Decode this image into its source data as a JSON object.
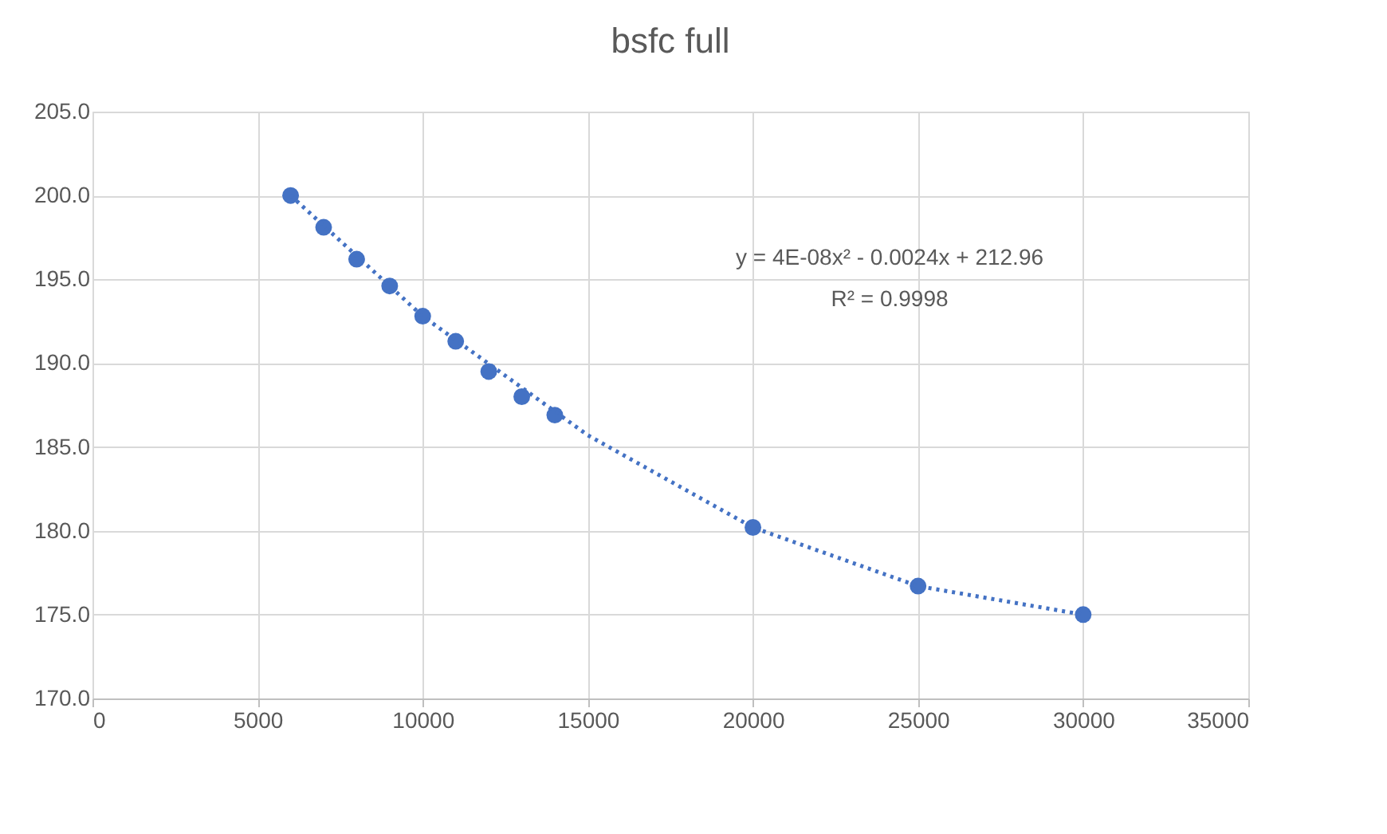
{
  "chart_data": {
    "type": "scatter",
    "title": "bsfc full",
    "x": [
      6000,
      7000,
      8000,
      9000,
      10000,
      11000,
      12000,
      13000,
      14000,
      20000,
      25000,
      30000
    ],
    "series": [
      {
        "color": "#4472c4",
        "values": [
          200.0,
          198.1,
          196.2,
          194.6,
          192.8,
          191.3,
          189.5,
          188.0,
          186.9,
          180.2,
          176.7,
          175.0
        ],
        "marker": "circle"
      },
      {
        "type": "line",
        "color": "#4472c4",
        "line_style": "dotted",
        "x": [
          6000,
          10000,
          15000,
          20000,
          25000,
          30000
        ],
        "values": [
          200.0,
          192.8,
          185.7,
          180.2,
          176.7,
          175.0
        ]
      }
    ],
    "xlim": [
      0,
      35000
    ],
    "xticks": [
      0,
      5000,
      10000,
      15000,
      20000,
      25000,
      30000,
      35000
    ],
    "ylim": [
      170,
      205
    ],
    "yticks": [
      {
        "value": 170,
        "label": "170.0"
      },
      {
        "value": 175,
        "label": "175.0"
      },
      {
        "value": 180,
        "label": "180.0"
      },
      {
        "value": 185,
        "label": "185.0"
      },
      {
        "value": 190,
        "label": "190.0"
      },
      {
        "value": 195,
        "label": "195.0"
      },
      {
        "value": 200,
        "label": "200.0"
      },
      {
        "value": 205,
        "label": "205.0"
      }
    ],
    "grid": true,
    "annotations": [
      "y = 4E-08x² - 0.0024x + 212.96",
      "R² = 0.9998"
    ]
  }
}
